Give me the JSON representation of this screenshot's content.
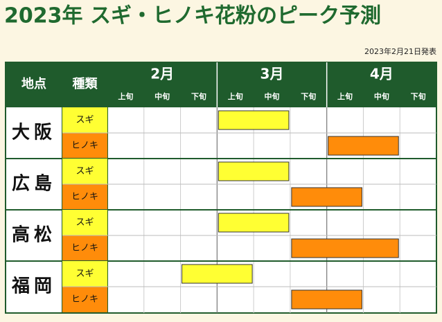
{
  "title": "2023年 スギ・ヒノキ花粉のピーク予測",
  "announcement": "2023年2月21日発表",
  "header": {
    "location": "地点",
    "type": "種類",
    "months": [
      "2月",
      "3月",
      "4月"
    ],
    "periods": [
      "上旬",
      "中旬",
      "下旬"
    ]
  },
  "rows": [
    {
      "location": "大阪",
      "items": [
        {
          "type": "スギ",
          "start": 3,
          "end": 4
        },
        {
          "type": "ヒノキ",
          "start": 6,
          "end": 7
        }
      ]
    },
    {
      "location": "広島",
      "items": [
        {
          "type": "スギ",
          "start": 3,
          "end": 4
        },
        {
          "type": "ヒノキ",
          "start": 5,
          "end": 6
        }
      ]
    },
    {
      "location": "高松",
      "items": [
        {
          "type": "スギ",
          "start": 3,
          "end": 4
        },
        {
          "type": "ヒノキ",
          "start": 5,
          "end": 7
        }
      ]
    },
    {
      "location": "福岡",
      "items": [
        {
          "type": "スギ",
          "start": 2,
          "end": 3
        },
        {
          "type": "ヒノキ",
          "start": 5,
          "end": 6
        }
      ]
    }
  ],
  "colors": {
    "スギ": "#ffff33",
    "ヒノキ": "#ff8c0a"
  }
}
